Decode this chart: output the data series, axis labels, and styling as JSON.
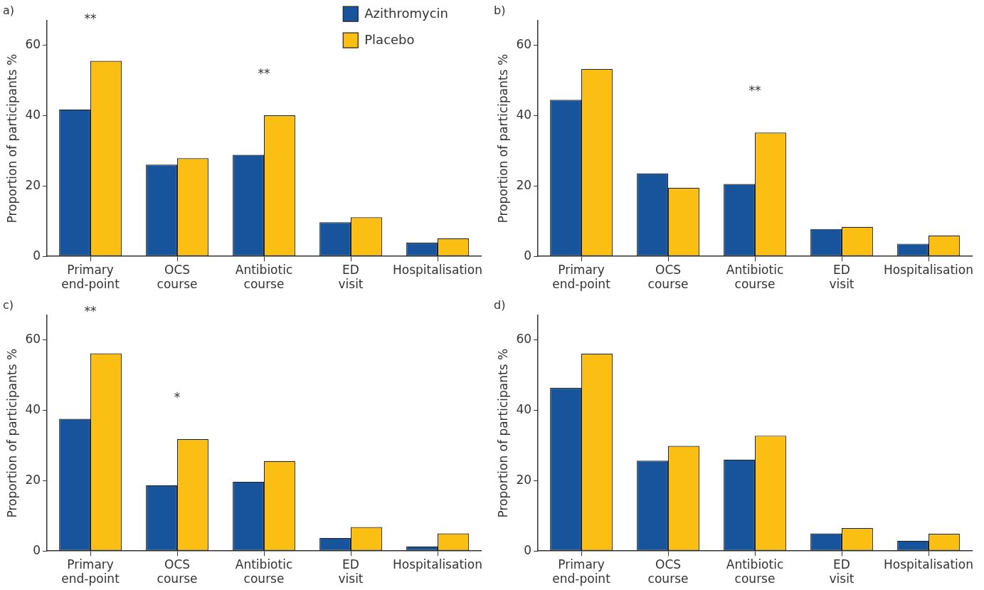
{
  "chart_data": [
    {
      "type": "bar",
      "title": "a)",
      "ylabel": "Proportion of participants %",
      "categories": [
        "Primary end-point",
        "OCS course",
        "Antibiotic course",
        "ED visit",
        "Hospitalisation"
      ],
      "series": [
        {
          "name": "Azithromycin",
          "color": "#17549b",
          "values": [
            41.8,
            26.1,
            28.9,
            9.7,
            3.9
          ]
        },
        {
          "name": "Placebo",
          "color": "#fbbf14",
          "values": [
            55.6,
            27.9,
            40.1,
            11.1,
            5.1
          ]
        }
      ],
      "ylim": [
        0,
        67
      ],
      "yticks": [
        0,
        20,
        40,
        60
      ],
      "grid": false,
      "legend": "top right",
      "annotations": [
        {
          "text": "**",
          "x": "Primary end-point",
          "y": 55.6
        },
        {
          "text": "**",
          "x": "Antibiotic course",
          "y": 40.1
        }
      ]
    },
    {
      "type": "bar",
      "title": "b)",
      "ylabel": "Proportion of participants %",
      "categories": [
        "Primary end-point",
        "OCS course",
        "Antibiotic course",
        "ED visit",
        "Hospitalisation"
      ],
      "series": [
        {
          "color": "#17549b",
          "values": [
            44.5,
            23.6,
            20.6,
            7.8,
            3.6
          ]
        },
        {
          "color": "#fbbf14",
          "values": [
            53.3,
            19.5,
            35.2,
            8.4,
            5.9
          ]
        }
      ],
      "ylim": [
        0,
        67
      ],
      "yticks": [
        0,
        20,
        40,
        60
      ],
      "grid": false,
      "legend": false,
      "annotations": [
        {
          "text": "**",
          "x": "Antibiotic course",
          "y": 35.2
        }
      ]
    },
    {
      "type": "bar",
      "title": "c)",
      "ylabel": "Proportion of participants %",
      "categories": [
        "Primary end-point",
        "OCS course",
        "Antibiotic course",
        "ED visit",
        "Hospitalisation"
      ],
      "series": [
        {
          "color": "#17549b",
          "values": [
            37.6,
            18.7,
            19.7,
            3.7,
            1.3
          ]
        },
        {
          "color": "#fbbf14",
          "values": [
            56.2,
            31.8,
            25.6,
            6.8,
            5.0
          ]
        }
      ],
      "ylim": [
        0,
        67
      ],
      "yticks": [
        0,
        20,
        40,
        60
      ],
      "grid": false,
      "legend": false,
      "annotations": [
        {
          "text": "**",
          "x": "Primary end-point",
          "y": 56.2
        },
        {
          "text": "*",
          "x": "OCS course",
          "y": 31.8
        }
      ]
    },
    {
      "type": "bar",
      "title": "d)",
      "ylabel": "Proportion of participants %",
      "categories": [
        "Primary end-point",
        "OCS course",
        "Antibiotic course",
        "ED visit",
        "Hospitalisation"
      ],
      "series": [
        {
          "color": "#17549b",
          "values": [
            46.4,
            25.7,
            26.0,
            5.0,
            2.9
          ]
        },
        {
          "color": "#fbbf14",
          "values": [
            56.1,
            29.9,
            32.8,
            6.5,
            4.9
          ]
        }
      ],
      "ylim": [
        0,
        67
      ],
      "yticks": [
        0,
        20,
        40,
        60
      ],
      "grid": false,
      "legend": false
    }
  ]
}
